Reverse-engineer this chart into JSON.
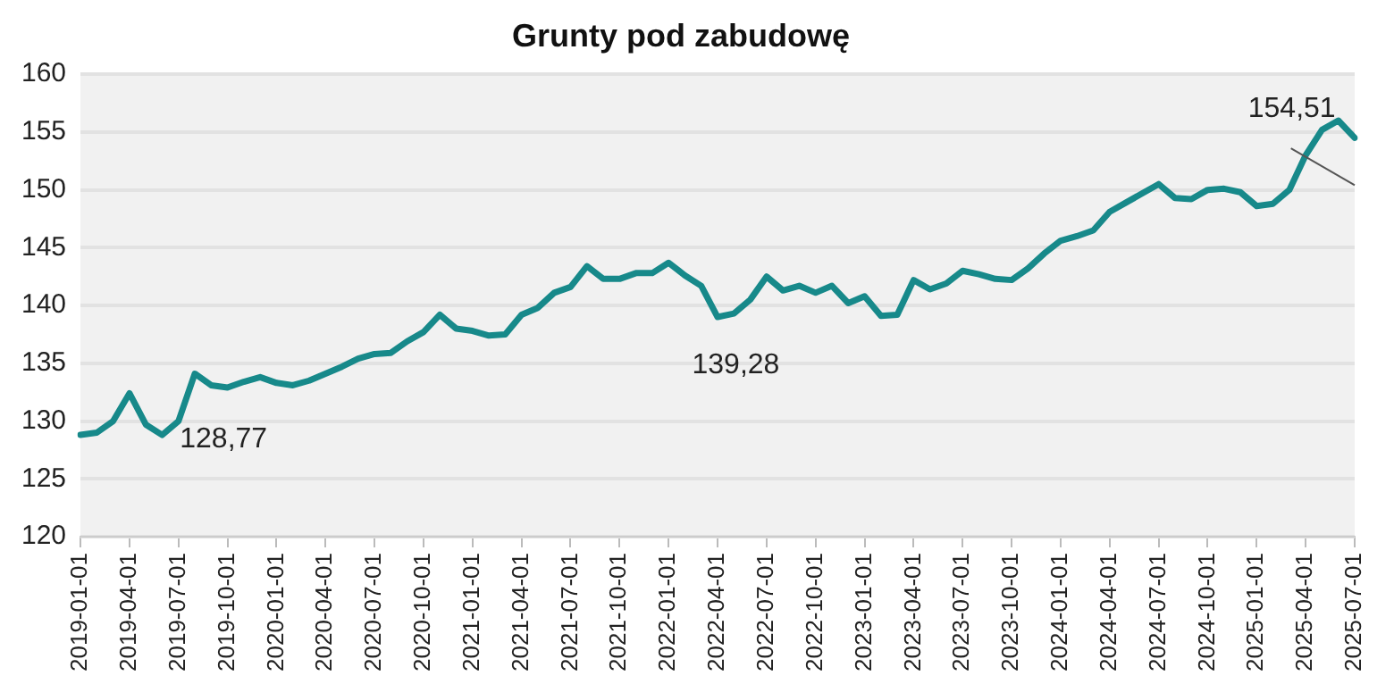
{
  "chart_data": {
    "type": "line",
    "title": "Grunty pod zabudowę",
    "categories": [
      "2019-01-01",
      null,
      null,
      "2019-04-01",
      null,
      null,
      "2019-07-01",
      null,
      null,
      "2019-10-01",
      null,
      null,
      "2020-01-01",
      null,
      null,
      "2020-04-01",
      null,
      null,
      "2020-07-01",
      null,
      null,
      "2020-10-01",
      null,
      null,
      "2021-01-01",
      null,
      null,
      "2021-04-01",
      null,
      null,
      "2021-07-01",
      null,
      null,
      "2021-10-01",
      null,
      null,
      "2022-01-01",
      null,
      null,
      "2022-04-01",
      null,
      null,
      "2022-07-01",
      null,
      null,
      "2022-10-01",
      null,
      null,
      "2023-01-01",
      null,
      null,
      "2023-04-01",
      null,
      null,
      "2023-07-01",
      null,
      null,
      "2023-10-01",
      null,
      null,
      "2024-01-01",
      null,
      null,
      "2024-04-01",
      null,
      null,
      "2024-07-01",
      null,
      null,
      "2024-10-01",
      null,
      null,
      "2025-01-01",
      null,
      null,
      "2025-04-01",
      null,
      null,
      "2025-07-01"
    ],
    "series": [
      {
        "color": "#17898a",
        "values": [
          128.8,
          129.0,
          130.0,
          132.4,
          129.7,
          128.8,
          130.0,
          134.1,
          133.1,
          132.9,
          133.4,
          133.8,
          133.3,
          133.1,
          133.5,
          134.1,
          134.7,
          135.4,
          135.8,
          135.9,
          136.9,
          137.7,
          139.2,
          138.0,
          137.8,
          137.4,
          137.5,
          139.2,
          139.8,
          141.1,
          141.6,
          143.4,
          142.3,
          142.3,
          142.8,
          142.8,
          143.7,
          142.6,
          141.7,
          139.0,
          139.3,
          140.5,
          142.5,
          141.3,
          141.7,
          141.1,
          141.7,
          140.2,
          140.8,
          139.1,
          139.2,
          142.2,
          141.4,
          141.9,
          143.0,
          142.7,
          142.3,
          142.2,
          143.2,
          144.5,
          145.6,
          146.0,
          146.5,
          148.1,
          148.9,
          149.7,
          150.5,
          149.3,
          149.2,
          150.0,
          150.1,
          149.8,
          148.6,
          148.8,
          150.0,
          153.0,
          155.2,
          156.0,
          154.5
        ]
      }
    ],
    "ylim": [
      120,
      160
    ],
    "yticks": [
      120,
      125,
      130,
      135,
      140,
      145,
      150,
      155,
      160
    ],
    "grid": "y",
    "legend": false,
    "marker": "none",
    "line_style": "solid",
    "annotations": [
      "128,77",
      "139,28",
      "154,51"
    ]
  }
}
